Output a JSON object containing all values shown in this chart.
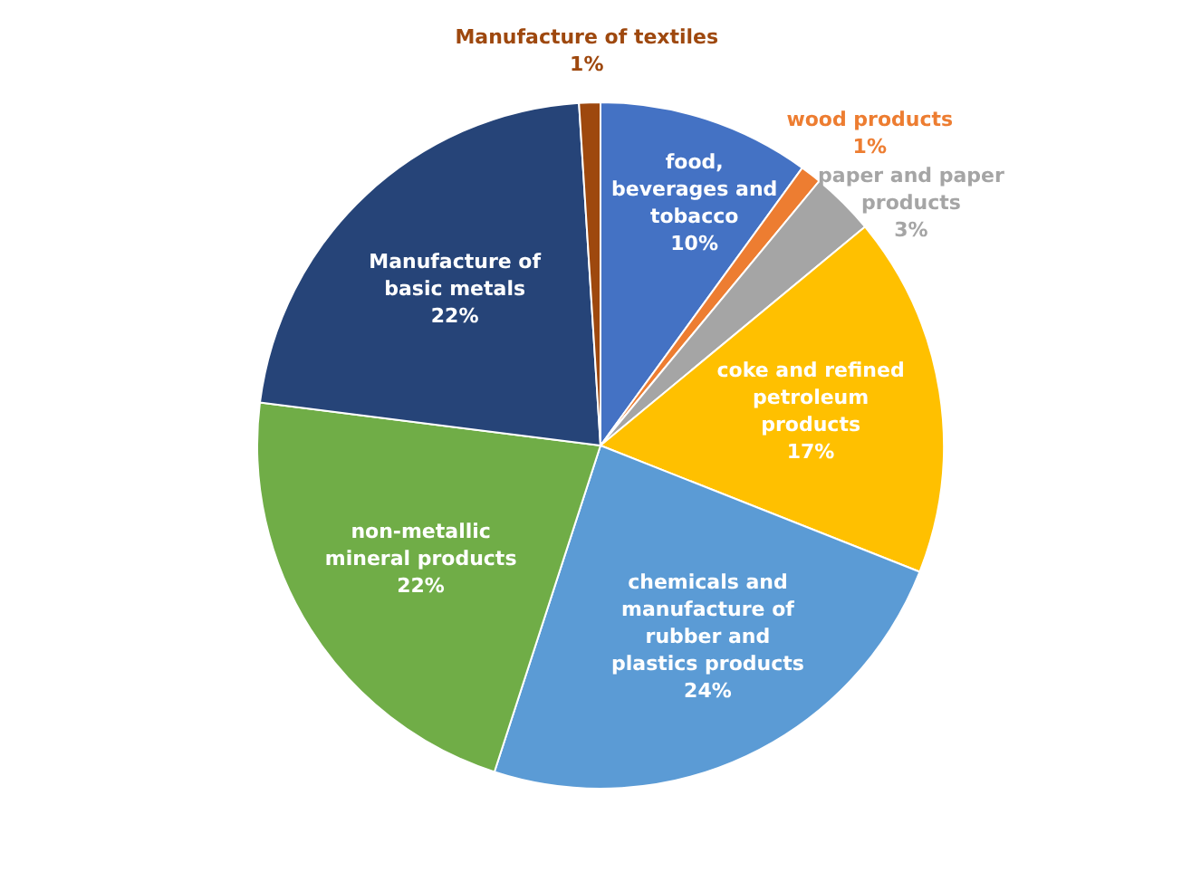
{
  "chart_data": {
    "type": "pie",
    "categories": [
      "food, beverages and tobacco",
      "wood products",
      "paper and paper products",
      "coke and refined petroleum products",
      "chemicals and manufacture of rubber and plastics products",
      "non-metallic mineral products",
      "Manufacture of basic metals",
      "Manufacture of textiles"
    ],
    "values": [
      10,
      1,
      3,
      17,
      24,
      22,
      22,
      1
    ],
    "value_labels": [
      "10%",
      "1%",
      "3%",
      "17%",
      "24%",
      "22%",
      "22%",
      "1%"
    ],
    "colors": [
      "#4472c4",
      "#ed7d31",
      "#a5a5a5",
      "#ffc000",
      "#5b9bd5",
      "#70ad47",
      "#264478",
      "#9e480e"
    ],
    "legend": false
  }
}
